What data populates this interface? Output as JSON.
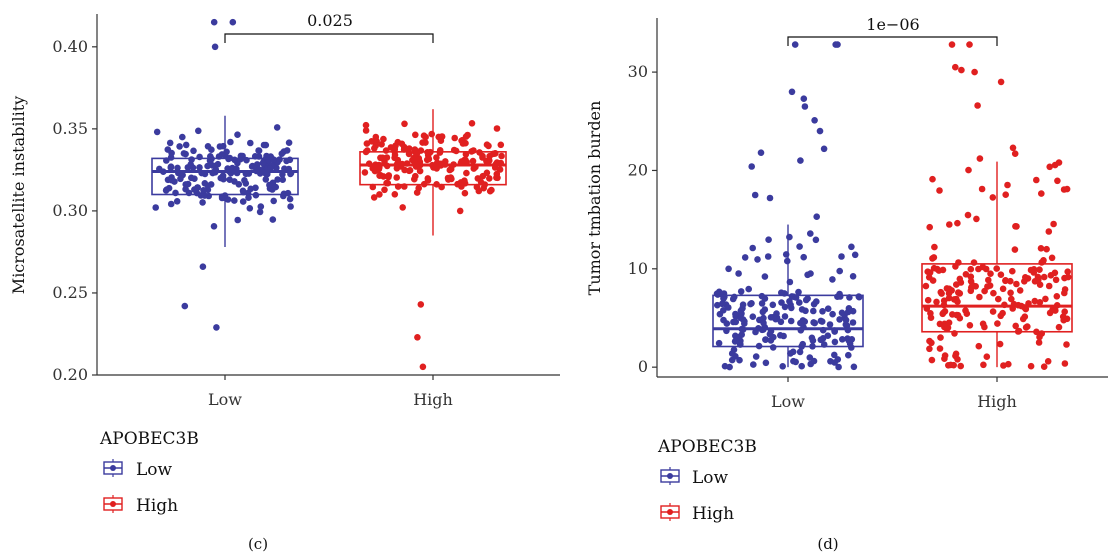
{
  "colors": {
    "low": "#3b3b9e",
    "high": "#e02020",
    "axis": "#333333"
  },
  "chart_data": [
    {
      "type": "box",
      "panel_label": "(c)",
      "ylabel": "Microsatellite instability",
      "categories": [
        "Low",
        "High"
      ],
      "ylim": [
        0.2,
        0.42
      ],
      "yticks": [
        "0.20",
        "0.25",
        "0.30",
        "0.35",
        "0.40"
      ],
      "ytick_values": [
        0.2,
        0.25,
        0.3,
        0.35,
        0.4
      ],
      "pvalue": "0.025",
      "legend": {
        "title": "APOBEC3B",
        "items": [
          "Low",
          "High"
        ],
        "placement": "bottom-left"
      },
      "series": [
        {
          "name": "Low",
          "q1": 0.31,
          "median": 0.324,
          "q3": 0.332,
          "whisker_low": 0.278,
          "whisker_high": 0.358,
          "outliers": [
            0.4,
            0.415,
            0.415,
            0.242,
            0.229,
            0.266
          ]
        },
        {
          "name": "High",
          "q1": 0.316,
          "median": 0.328,
          "q3": 0.336,
          "whisker_low": 0.285,
          "whisker_high": 0.362,
          "outliers": [
            0.243,
            0.223,
            0.205
          ]
        }
      ]
    },
    {
      "type": "box",
      "panel_label": "(d)",
      "ylabel": "Tumor tmbation burden",
      "categories": [
        "Low",
        "High"
      ],
      "ylim": [
        -1,
        35.5
      ],
      "yticks": [
        "0",
        "10",
        "20",
        "30"
      ],
      "ytick_values": [
        0,
        10,
        20,
        30
      ],
      "pvalue": "1e−06",
      "legend": {
        "title": "APOBEC3B",
        "items": [
          "Low",
          "High"
        ],
        "placement": "bottom-left"
      },
      "series": [
        {
          "name": "Low",
          "q1": 2.1,
          "median": 3.9,
          "q3": 7.3,
          "whisker_low": 0,
          "whisker_high": 14.5,
          "outliers": [
            32.8,
            32.8,
            32.8,
            27.3,
            28.0,
            26.5,
            25.1,
            24.0,
            22.2,
            21.8,
            21.0,
            20.4,
            17.5,
            17.2,
            15.3
          ]
        },
        {
          "name": "High",
          "q1": 3.6,
          "median": 6.2,
          "q3": 10.5,
          "whisker_low": 0,
          "whisker_high": 20.9,
          "outliers": [
            32.8,
            32.8,
            30.5,
            30.2,
            30.0,
            29.0,
            26.6,
            22.3,
            21.7,
            21.2
          ]
        }
      ]
    }
  ]
}
